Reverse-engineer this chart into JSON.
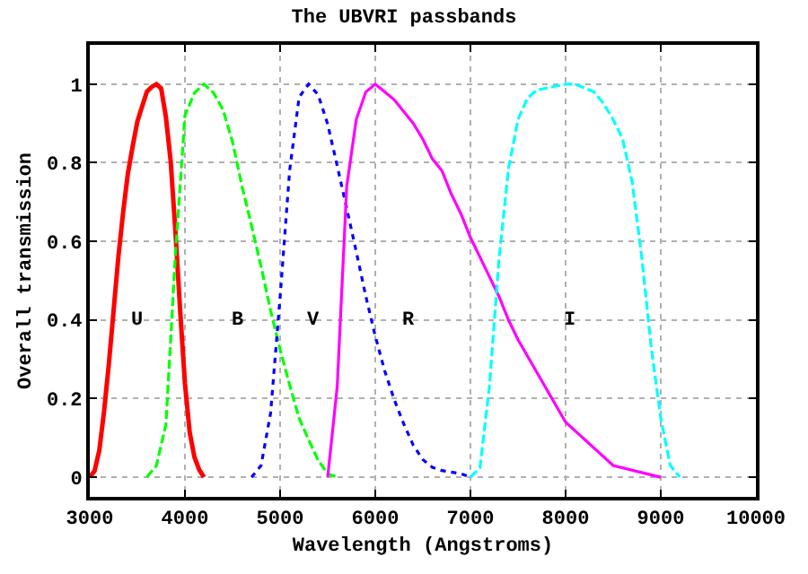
{
  "chart_data": {
    "type": "line",
    "title": "The UBVRI passbands",
    "xlabel": "Wavelength (Angstroms)",
    "ylabel": "Overall transmission",
    "xlim": [
      3000,
      10000
    ],
    "xticks": [
      3000,
      4000,
      5000,
      6000,
      7000,
      8000,
      9000,
      10000
    ],
    "ylim": [
      -0.05,
      1.1
    ],
    "yticks": [
      0,
      0.2,
      0.4,
      0.6,
      0.8,
      1
    ],
    "grid": true,
    "marker": "none",
    "series": [
      {
        "color": "#ff0000",
        "line_style": "solid",
        "x": [
          3000,
          3050,
          3100,
          3150,
          3200,
          3250,
          3300,
          3350,
          3400,
          3450,
          3500,
          3550,
          3600,
          3650,
          3700,
          3750,
          3800,
          3850,
          3900,
          3950,
          4000,
          4050,
          4100,
          4150,
          4200
        ],
        "values": [
          0,
          0.016,
          0.068,
          0.167,
          0.287,
          0.423,
          0.56,
          0.673,
          0.772,
          0.841,
          0.905,
          0.943,
          0.981,
          0.993,
          1,
          0.989,
          0.916,
          0.804,
          0.625,
          0.423,
          0.238,
          0.114,
          0.051,
          0.019,
          0
        ]
      },
      {
        "color": "#00ff00",
        "line_style": "dashed",
        "x": [
          3600,
          3700,
          3800,
          3900,
          4000,
          4100,
          4200,
          4300,
          4400,
          4500,
          4600,
          4700,
          4800,
          4900,
          5000,
          5100,
          5200,
          5300,
          5400,
          5500,
          5600
        ],
        "values": [
          0,
          0.03,
          0.134,
          0.567,
          0.92,
          0.978,
          1,
          0.978,
          0.935,
          0.853,
          0.74,
          0.64,
          0.536,
          0.424,
          0.325,
          0.235,
          0.15,
          0.095,
          0.043,
          0.009,
          0
        ]
      },
      {
        "color": "#0000ff",
        "line_style": "dotted",
        "x": [
          4700,
          4800,
          4900,
          5000,
          5100,
          5200,
          5300,
          5400,
          5500,
          5600,
          5700,
          5800,
          5900,
          6000,
          6100,
          6200,
          6300,
          6400,
          6500,
          6600,
          6700,
          6800,
          6900,
          7000
        ],
        "values": [
          0,
          0.03,
          0.163,
          0.458,
          0.78,
          0.967,
          1,
          0.973,
          0.898,
          0.792,
          0.684,
          0.574,
          0.461,
          0.359,
          0.27,
          0.197,
          0.135,
          0.081,
          0.045,
          0.025,
          0.017,
          0.013,
          0.009,
          0
        ]
      },
      {
        "color": "#ff00ff",
        "line_style": "solid",
        "x": [
          5500,
          5600,
          5700,
          5800,
          5900,
          6000,
          6100,
          6200,
          6300,
          6400,
          6500,
          6600,
          6700,
          6800,
          6900,
          7000,
          7100,
          7200,
          7300,
          7400,
          7500,
          8000,
          8500,
          9000
        ],
        "values": [
          0,
          0.23,
          0.74,
          0.91,
          0.98,
          1,
          0.98,
          0.96,
          0.93,
          0.9,
          0.86,
          0.81,
          0.78,
          0.72,
          0.67,
          0.61,
          0.56,
          0.51,
          0.46,
          0.4,
          0.35,
          0.14,
          0.03,
          0
        ]
      },
      {
        "color": "#00ffff",
        "line_style": "dashed",
        "x": [
          7000,
          7100,
          7200,
          7300,
          7400,
          7500,
          7600,
          7700,
          7800,
          7900,
          8000,
          8100,
          8200,
          8300,
          8400,
          8500,
          8600,
          8700,
          8800,
          8900,
          9000,
          9100,
          9200
        ],
        "values": [
          0,
          0.024,
          0.232,
          0.555,
          0.785,
          0.91,
          0.965,
          0.985,
          0.99,
          0.995,
          1,
          1,
          0.99,
          0.98,
          0.95,
          0.91,
          0.86,
          0.75,
          0.56,
          0.33,
          0.15,
          0.03,
          0
        ]
      }
    ],
    "annotations": [
      "U",
      "B",
      "V",
      "R",
      "I"
    ]
  }
}
